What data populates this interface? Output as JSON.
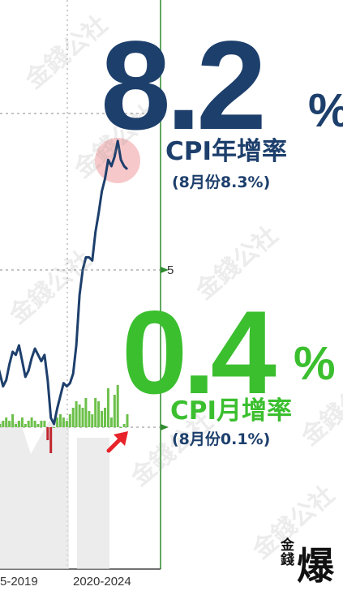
{
  "annual": {
    "value": "8.2",
    "unit": "%",
    "label": "CPI年增率",
    "sub": "(8月份8.3%)",
    "color": "#1d3f6c"
  },
  "monthly": {
    "value": "0.4",
    "unit": "%",
    "label": "CPI月增率",
    "sub": "(8月份0.1%)",
    "color": "#3bbf2f"
  },
  "watermark": "金錢公社",
  "logo": {
    "small": "金錢",
    "big": "爆"
  },
  "colors": {
    "line": "#1d3f6c",
    "bar_pos": "#6cc04a",
    "bar_neg": "#c0262d",
    "arrow": "#e8232a",
    "highlight": "#f4b6b8",
    "axis_guide": "#2e8b2e"
  },
  "chart_data": {
    "type": "line",
    "x_tick_labels": [
      "5-2019",
      "2020-2024"
    ],
    "y_tick_labels": [
      "5"
    ],
    "series": [
      {
        "values": [
          2.4,
          2.1,
          1.7,
          1.3,
          1.5,
          2.0,
          2.4,
          2.3,
          2.6,
          2.1,
          1.6,
          1.8,
          2.2,
          2.5,
          2.3,
          2.1,
          2.3,
          1.5,
          0.3,
          0.1,
          0.6,
          1.0,
          1.4,
          1.3,
          1.4,
          1.7,
          2.6,
          4.2,
          5.0,
          5.4,
          5.4,
          5.3,
          6.2,
          6.8,
          7.5,
          7.9,
          8.5,
          8.3,
          8.6,
          9.1,
          8.5,
          8.3,
          8.2
        ]
      }
    ],
    "bars": [
      0.3,
      0.2,
      0.1,
      0.2,
      0.3,
      0.2,
      0.4,
      0.1,
      0.2,
      0.3,
      0.1,
      0.2,
      0.3,
      0.2,
      0.1,
      0.2,
      0.2,
      -0.4,
      -0.8,
      0.0,
      0.3,
      0.4,
      0.3,
      0.2,
      0.4,
      0.6,
      0.8,
      0.7,
      0.6,
      0.9,
      0.5,
      0.4,
      0.9,
      0.8,
      0.5,
      0.6,
      1.2,
      0.3,
      1.0,
      1.3,
      0.0,
      0.1,
      0.4
    ]
  }
}
